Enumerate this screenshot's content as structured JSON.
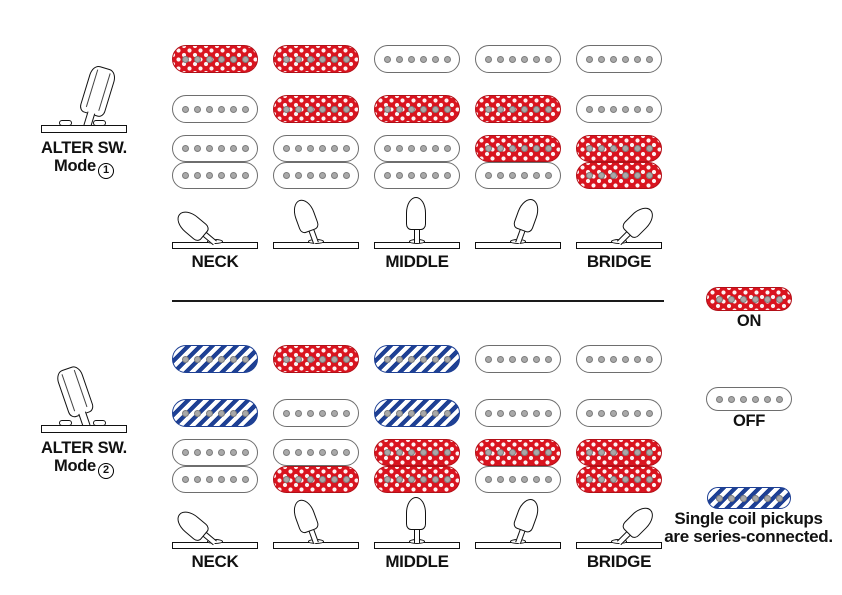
{
  "selector": {
    "title": "ALTER SW.",
    "mode_word": "Mode"
  },
  "colors": {
    "on_red": "#d9141f",
    "series_blue": "#1e4094",
    "pole_gray": "#a9a9a9",
    "off_outline": "#6e6e6e"
  },
  "pickup_rows": [
    "neck-single",
    "middle-single",
    "bridge-humbucker-top-coil",
    "bridge-humbucker-bottom-coil"
  ],
  "modes": [
    {
      "number": "1",
      "selector_tilt": "right",
      "positions": [
        {
          "label": "NECK",
          "lever_angle": -50,
          "pickups": [
            "on",
            "off",
            "off",
            "off"
          ]
        },
        {
          "label": "",
          "lever_angle": -20,
          "pickups": [
            "on",
            "on",
            "off",
            "off"
          ]
        },
        {
          "label": "MIDDLE",
          "lever_angle": 0,
          "pickups": [
            "off",
            "on",
            "off",
            "off"
          ]
        },
        {
          "label": "",
          "lever_angle": 20,
          "pickups": [
            "off",
            "on",
            "on",
            "off"
          ]
        },
        {
          "label": "BRIDGE",
          "lever_angle": 45,
          "pickups": [
            "off",
            "off",
            "on",
            "on"
          ]
        }
      ]
    },
    {
      "number": "2",
      "selector_tilt": "left",
      "positions": [
        {
          "label": "NECK",
          "lever_angle": -50,
          "pickups": [
            "series",
            "series",
            "off",
            "off"
          ]
        },
        {
          "label": "",
          "lever_angle": -20,
          "pickups": [
            "on",
            "off",
            "off",
            "on"
          ]
        },
        {
          "label": "MIDDLE",
          "lever_angle": 0,
          "pickups": [
            "series",
            "series",
            "on",
            "on"
          ]
        },
        {
          "label": "",
          "lever_angle": 20,
          "pickups": [
            "off",
            "off",
            "on",
            "off"
          ]
        },
        {
          "label": "BRIDGE",
          "lever_angle": 45,
          "pickups": [
            "off",
            "off",
            "on",
            "on"
          ]
        }
      ]
    }
  ],
  "legend": {
    "on_label": "ON",
    "off_label": "OFF",
    "series_note_line1": "Single coil pickups",
    "series_note_line2": "are series-connected."
  }
}
